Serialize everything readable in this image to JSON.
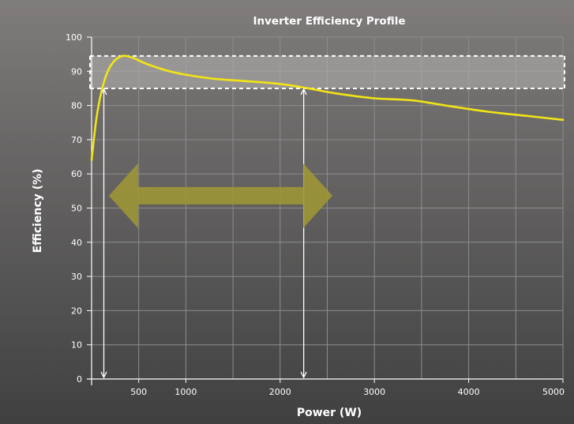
{
  "chart_data": {
    "type": "line",
    "title": "Inverter Efficiency Profile",
    "xlabel": "Power (W)",
    "ylabel": "Efficiency (%)",
    "xlim": [
      0,
      5000
    ],
    "ylim": [
      0,
      100
    ],
    "x_ticks": [
      500,
      1000,
      2000,
      3000,
      4000,
      5000
    ],
    "y_ticks": [
      0,
      10,
      20,
      30,
      40,
      50,
      60,
      70,
      80,
      90,
      100
    ],
    "grid": true,
    "series": [
      {
        "color": "#f2e416",
        "x": [
          0,
          50,
          100,
          150,
          200,
          260,
          330,
          380,
          450,
          600,
          800,
          1000,
          1300,
          1600,
          2000,
          2300,
          2600,
          3000,
          3400,
          3800,
          4200,
          4600,
          5000
        ],
        "y": [
          64,
          76,
          83.5,
          88.5,
          91.5,
          93.5,
          94.5,
          94.4,
          93.8,
          92,
          90.2,
          89,
          87.8,
          87.2,
          86.3,
          85,
          83.5,
          82.1,
          81.5,
          79.8,
          78.2,
          77,
          75.8
        ]
      }
    ],
    "annotations": {
      "band": {
        "y_min": 85,
        "y_max": 94.5,
        "x_min": 0,
        "x_max": 5000
      },
      "vertical_markers": [
        {
          "x": 130,
          "y_from": 0,
          "y_to": 85
        },
        {
          "x": 2250,
          "y_from": 0,
          "y_to": 85
        }
      ],
      "double_arrow": {
        "x_from": 200,
        "x_to": 2220,
        "y_center": 55
      }
    },
    "colors": {
      "background_top": "#7f7c7b",
      "background_bottom": "#404040",
      "line": "#f2e416",
      "band": "#b5b3b1",
      "arrow": "#9d9636",
      "grid": "#8d8d8d"
    }
  }
}
